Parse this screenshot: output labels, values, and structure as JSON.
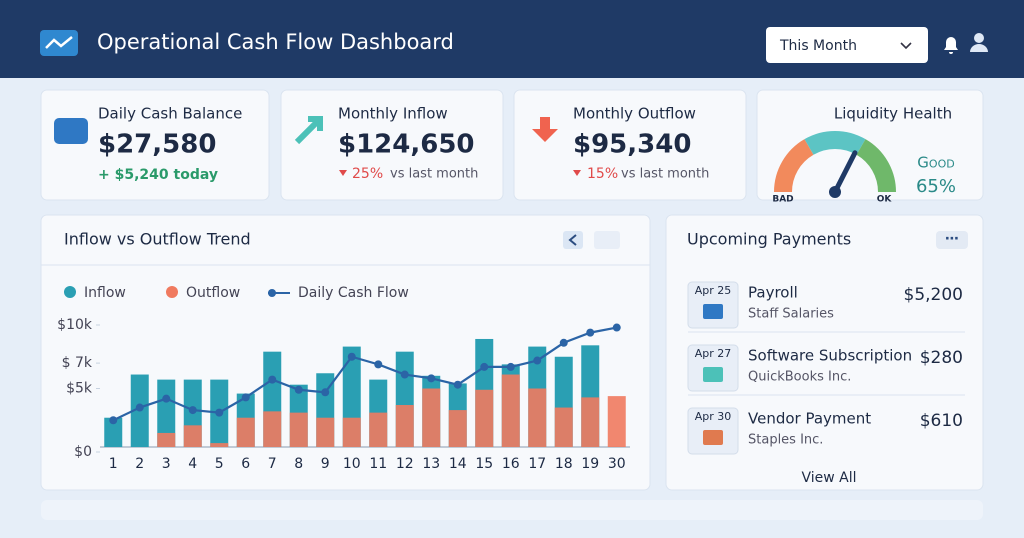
{
  "header": {
    "title": "Operational Cash Flow Dashboard",
    "period": "This Month"
  },
  "kpis": [
    {
      "title": "Daily Cash Balance",
      "value": "$27,580",
      "change": "+ $5,240 today"
    },
    {
      "title": "Monthly Inflow",
      "value": "$124,650",
      "change": "25%",
      "note": "vs last month"
    },
    {
      "title": "Monthly Outflow",
      "value": "$95,340",
      "change": "15%",
      "note": "vs last month"
    }
  ],
  "liquidity": {
    "title": "Liquidity Health",
    "status": "Good",
    "value": 65,
    "value_label": "65%",
    "min_label": "BAD",
    "max_label": "OK"
  },
  "chart_data": {
    "type": "bar",
    "title": "Inflow vs Outflow Trend",
    "categories": [
      "1",
      "2",
      "3",
      "4",
      "5",
      "6",
      "7",
      "8",
      "9",
      "10",
      "11",
      "12",
      "13",
      "14",
      "15",
      "16",
      "17",
      "18",
      "19",
      "30"
    ],
    "series": [
      {
        "name": "Inflow",
        "color": "#2a9fb3",
        "values": [
          2700,
          6100,
          5700,
          5700,
          5700,
          4600,
          7900,
          5300,
          6200,
          8300,
          5700,
          7900,
          6000,
          5400,
          8900,
          6900,
          8300,
          7500,
          8400,
          0
        ]
      },
      {
        "name": "Outflow",
        "color": "#f07a5f",
        "values": [
          0,
          0,
          1500,
          2100,
          700,
          2700,
          3200,
          3100,
          2700,
          2700,
          3100,
          3700,
          5000,
          3300,
          4900,
          6100,
          5000,
          3500,
          4300,
          4400
        ]
      },
      {
        "name": "Daily Cash Flow",
        "color": "#2b64a6",
        "type": "line",
        "values": [
          2500,
          3500,
          4200,
          3300,
          3100,
          4300,
          5700,
          4900,
          4700,
          7500,
          6900,
          6100,
          5800,
          5300,
          6700,
          6700,
          7200,
          8600,
          9400,
          9800
        ]
      }
    ],
    "ylim": [
      0,
      10000
    ],
    "yticks": [
      {
        "value": 0,
        "label": "$0"
      },
      {
        "value": 5000,
        "label": "$5k"
      },
      {
        "value": 7000,
        "label": "$ 7k"
      },
      {
        "value": 10000,
        "label": "$10k"
      }
    ]
  },
  "payments": {
    "title": "Upcoming Payments",
    "items": [
      {
        "date": "Apr 25",
        "name": "Payroll",
        "detail": "Staff Salaries",
        "amount": "$5,200"
      },
      {
        "date": "Apr 27",
        "name": "Software Subscription",
        "detail": "QuickBooks Inc.",
        "amount": "$280"
      },
      {
        "date": "Apr 30",
        "name": "Vendor Payment",
        "detail": "Staples Inc.",
        "amount": "$610"
      }
    ],
    "link": "View All"
  }
}
